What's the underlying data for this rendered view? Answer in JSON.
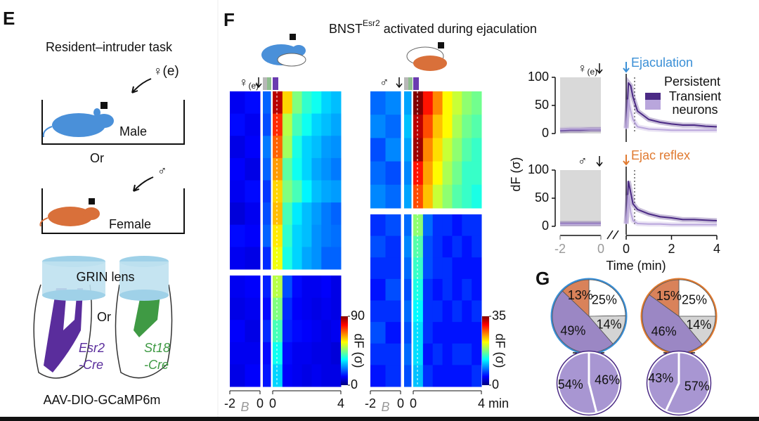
{
  "E": {
    "letter": "E",
    "title": "Resident–intruder task",
    "female_symbol": "♀",
    "female_sub": "(e)",
    "male": "Male",
    "or1": "Or",
    "male_symbol": "♂",
    "female": "Female",
    "grin": "GRIN lens",
    "or2": "Or",
    "esr2": "Esr2",
    "esr2_cre": "-Cre",
    "st18": "St18",
    "st18_cre": "-Cre",
    "virus": "AAV-DIO-GCaMP6m"
  },
  "F": {
    "letter": "F",
    "title_main": "BNST",
    "title_sup": "Esr2",
    "title_rest": " activated during ejaculation",
    "heatmaps": [
      {
        "cue": "♀",
        "cue_sub": "(e)",
        "clim": [
          0,
          90
        ],
        "cticks": [
          0,
          90
        ],
        "cbar_label": "dF (σ)",
        "xlim_pre": [
          -2,
          0
        ],
        "xlim_post": [
          0,
          4
        ],
        "xticks_pre": [
          -2,
          0
        ],
        "xticks_post": [
          0,
          4
        ],
        "baseline_label": "B",
        "rows_top": [
          [
            10,
            12,
            20,
            85,
            60,
            45,
            38,
            35,
            30,
            28
          ],
          [
            12,
            10,
            18,
            75,
            50,
            40,
            35,
            30,
            28,
            26
          ],
          [
            9,
            11,
            22,
            70,
            48,
            36,
            30,
            28,
            25,
            24
          ],
          [
            11,
            9,
            20,
            65,
            42,
            35,
            30,
            26,
            24,
            22
          ],
          [
            10,
            12,
            16,
            60,
            45,
            40,
            33,
            28,
            26,
            25
          ],
          [
            8,
            10,
            18,
            62,
            40,
            32,
            28,
            25,
            22,
            20
          ],
          [
            12,
            11,
            20,
            58,
            38,
            30,
            28,
            24,
            22,
            21
          ],
          [
            10,
            9,
            15,
            55,
            36,
            30,
            26,
            24,
            20,
            20
          ]
        ],
        "rows_bottom": [
          [
            10,
            11,
            14,
            50,
            18,
            12,
            10,
            10,
            11,
            9
          ],
          [
            9,
            10,
            12,
            45,
            15,
            11,
            10,
            9,
            10,
            9
          ],
          [
            11,
            9,
            15,
            40,
            14,
            12,
            11,
            10,
            9,
            10
          ],
          [
            10,
            10,
            12,
            35,
            12,
            10,
            10,
            9,
            9,
            8
          ],
          [
            9,
            11,
            13,
            30,
            11,
            10,
            9,
            10,
            9,
            9
          ]
        ]
      },
      {
        "cue": "♂",
        "clim": [
          0,
          35
        ],
        "cticks": [
          0,
          35
        ],
        "cbar_label": "dF (σ)",
        "xlim_pre": [
          -2,
          0
        ],
        "xlim_post": [
          0,
          4
        ],
        "xticks_pre": [
          -2,
          0
        ],
        "xticks_post": [
          0,
          {
            "value": 4,
            "label": "4 min"
          }
        ],
        "baseline_label": "B",
        "rows_top": [
          [
            8,
            9,
            10,
            35,
            30,
            26,
            22,
            20,
            18,
            17
          ],
          [
            9,
            8,
            11,
            33,
            28,
            24,
            22,
            19,
            17,
            16
          ],
          [
            7,
            9,
            10,
            34,
            26,
            23,
            20,
            18,
            16,
            15
          ],
          [
            8,
            7,
            9,
            30,
            25,
            22,
            19,
            17,
            15,
            15
          ],
          [
            9,
            8,
            10,
            28,
            24,
            20,
            18,
            16,
            15,
            14
          ]
        ],
        "rows_bottom": [
          [
            6,
            7,
            8,
            18,
            8,
            6,
            6,
            5,
            6,
            6
          ],
          [
            7,
            6,
            9,
            16,
            7,
            6,
            5,
            6,
            5,
            6
          ],
          [
            6,
            6,
            8,
            15,
            7,
            6,
            6,
            5,
            5,
            5
          ],
          [
            5,
            7,
            7,
            14,
            6,
            5,
            6,
            5,
            6,
            5
          ],
          [
            6,
            6,
            8,
            13,
            6,
            6,
            5,
            6,
            5,
            6
          ],
          [
            7,
            5,
            7,
            12,
            6,
            5,
            5,
            5,
            5,
            5
          ],
          [
            6,
            6,
            8,
            12,
            5,
            6,
            5,
            6,
            6,
            5
          ],
          [
            5,
            6,
            7,
            11,
            6,
            5,
            5,
            5,
            5,
            6
          ]
        ]
      }
    ],
    "traces": {
      "ylabel": "dF (σ)",
      "xlabel": "Time (min)",
      "ylim": [
        0,
        100
      ],
      "yticks": [
        0,
        50,
        100
      ],
      "xlim_pre": [
        -2,
        0
      ],
      "xlim_post": [
        0,
        4
      ],
      "xticks_pre": [
        -2,
        0
      ],
      "xticks_post": [
        0,
        2,
        4
      ],
      "x_pre": [
        -2,
        -1.5,
        -1,
        -0.5,
        0
      ],
      "x_post": [
        0,
        0.1,
        0.2,
        0.3,
        0.5,
        1,
        1.5,
        2,
        2.5,
        3,
        3.5,
        4
      ],
      "panels": [
        {
          "cue": "♀",
          "cue_sub": "(e)",
          "event": "Ejaculation",
          "event_color": "#3a8fd6",
          "series": [
            {
              "name": "Persistent",
              "color": "#4b2a85",
              "pre": [
                5,
                6,
                6,
                7,
                7
              ],
              "post": [
                10,
                90,
                85,
                65,
                40,
                25,
                20,
                17,
                15,
                15,
                13,
                12
              ]
            },
            {
              "name": "Transient neurons",
              "color": "#b9a6dc",
              "pre": [
                7,
                8,
                8,
                8,
                8
              ],
              "post": [
                8,
                60,
                40,
                25,
                12,
                8,
                7,
                6,
                6,
                6,
                6,
                6
              ]
            }
          ]
        },
        {
          "cue": "♂",
          "event": "Ejac reflex",
          "event_color": "#e07a30",
          "series": [
            {
              "color": "#4b2a85",
              "pre": [
                5,
                5,
                5,
                5,
                5
              ],
              "post": [
                5,
                80,
                60,
                40,
                30,
                22,
                17,
                15,
                12,
                12,
                11,
                10
              ]
            },
            {
              "color": "#b9a6dc",
              "pre": [
                4,
                4,
                4,
                4,
                4
              ],
              "post": [
                4,
                55,
                25,
                10,
                5,
                4,
                4,
                3,
                3,
                3,
                3,
                3
              ]
            }
          ]
        }
      ]
    }
  },
  "G": {
    "letter": "G",
    "pies": [
      {
        "values": [
          25,
          14,
          49,
          13
        ],
        "value_labels": [
          "25%",
          "14%",
          "49%",
          "13%"
        ],
        "colors": [
          "#ffffff",
          "#d4d4d4",
          "#9b87c4",
          "#d9825a"
        ],
        "outline": "#3a8fd6"
      },
      {
        "values": [
          25,
          14,
          46,
          15
        ],
        "value_labels": [
          "25%",
          "14%",
          "46%",
          "15%"
        ],
        "colors": [
          "#ffffff",
          "#d4d4d4",
          "#9b87c4",
          "#d9825a"
        ],
        "outline": "#e07a30"
      }
    ],
    "halves": [
      {
        "values": [
          46,
          54
        ],
        "value_labels": [
          "46%",
          "54%"
        ],
        "color": "#a896d2"
      },
      {
        "values": [
          57,
          43
        ],
        "value_labels": [
          "57%",
          "43%"
        ],
        "color": "#a896d2"
      }
    ]
  }
}
